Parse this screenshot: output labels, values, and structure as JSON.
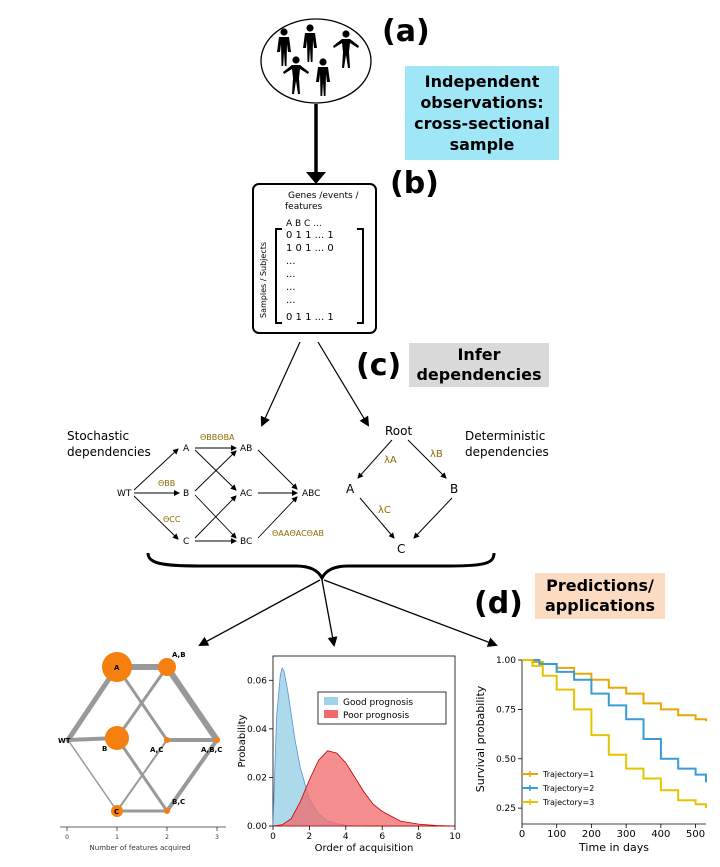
{
  "panels": {
    "a": "(a)",
    "b": "(b)",
    "c": "(c)",
    "d": "(d)"
  },
  "boxes": {
    "independent": [
      "Independent",
      "observations:",
      "cross-sectional",
      "sample"
    ],
    "infer": [
      "Infer",
      "dependencies"
    ],
    "predictions": [
      "Predictions/",
      "applications"
    ]
  },
  "matrix": {
    "header": [
      "Genes /events /",
      "features"
    ],
    "side_label": "Samples / Subjects",
    "rows": [
      "A  B  C     ...",
      "0  1  1     ...   1",
      "1  0  1     ...   0",
      "...",
      "...",
      "...",
      "...",
      "0  1  1     ...   1"
    ]
  },
  "stochastic": {
    "title": [
      "Stochastic",
      "dependencies"
    ],
    "nodes": [
      "WT",
      "A",
      "B",
      "C",
      "AB",
      "AC",
      "BC",
      "ABC"
    ],
    "thetas": {
      "bb_ba": "ΘBBΘBA",
      "bb": "ΘBB",
      "cc": "ΘCC",
      "aa_ac_ab": "ΘAAΘACΘAB"
    }
  },
  "deterministic": {
    "title": [
      "Deterministic",
      "dependencies"
    ],
    "nodes": [
      "Root",
      "A",
      "B",
      "C"
    ],
    "lambdas": [
      "λA",
      "λB",
      "λC"
    ]
  },
  "network": {
    "nodes": [
      "A",
      "A,B",
      "WT",
      "B",
      "A,C",
      "A,B,C",
      "C",
      "B,C"
    ],
    "axis_ticks": [
      "0",
      "1",
      "2",
      "3"
    ],
    "xlabel": "Number of features acquired"
  },
  "chart_data": [
    {
      "type": "area",
      "xlabel": "Order of acquisition",
      "ylabel": "Probability",
      "xlim": [
        0,
        10
      ],
      "ylim": [
        0,
        0.07
      ],
      "x_ticks": [
        "0",
        "2",
        "4",
        "6",
        "8",
        "10"
      ],
      "y_ticks": [
        "0.00",
        "0.02",
        "0.04",
        "0.06"
      ],
      "legend_position": "top-right",
      "series": [
        {
          "name": "Good prognosis",
          "color": "#9fd3e6",
          "x": [
            0,
            0.2,
            0.4,
            0.5,
            0.6,
            0.8,
            1.0,
            1.2,
            1.5,
            2.0,
            2.5,
            3.0,
            3.5,
            4.0,
            5.0
          ],
          "y": [
            0,
            0.045,
            0.062,
            0.065,
            0.064,
            0.056,
            0.046,
            0.036,
            0.024,
            0.011,
            0.005,
            0.002,
            0.001,
            0.0003,
            0
          ]
        },
        {
          "name": "Poor prognosis",
          "color": "#f26a6a",
          "x": [
            0,
            0.5,
            1.0,
            1.5,
            2.0,
            2.5,
            3.0,
            3.5,
            4.0,
            4.5,
            5.0,
            5.5,
            6.0,
            7.0,
            8.0,
            9.0,
            10.0
          ],
          "y": [
            0,
            0.0005,
            0.003,
            0.01,
            0.019,
            0.027,
            0.031,
            0.03,
            0.026,
            0.02,
            0.014,
            0.009,
            0.006,
            0.002,
            0.0008,
            0.0002,
            0
          ]
        }
      ]
    },
    {
      "type": "line",
      "xlabel": "Time in days",
      "ylabel": "Survival probability",
      "xlim": [
        0,
        530
      ],
      "ylim": [
        0.2,
        1.0
      ],
      "x_ticks": [
        "0",
        "100",
        "200",
        "300",
        "400",
        "500"
      ],
      "y_ticks": [
        "0.25",
        "0.50",
        "0.75",
        "1.00"
      ],
      "legend_position": "bottom-left",
      "series": [
        {
          "name": "Trajectory=1",
          "color": "#e8a800",
          "x": [
            0,
            30,
            60,
            100,
            150,
            200,
            250,
            300,
            350,
            400,
            450,
            500,
            530
          ],
          "y": [
            1.0,
            0.99,
            0.98,
            0.96,
            0.93,
            0.9,
            0.86,
            0.83,
            0.78,
            0.75,
            0.72,
            0.7,
            0.69
          ]
        },
        {
          "name": "Trajectory=2",
          "color": "#3a9bd9",
          "x": [
            0,
            50,
            100,
            150,
            200,
            250,
            300,
            350,
            400,
            450,
            500,
            530
          ],
          "y": [
            1.0,
            0.98,
            0.94,
            0.9,
            0.83,
            0.77,
            0.7,
            0.6,
            0.5,
            0.45,
            0.42,
            0.38
          ]
        },
        {
          "name": "Trajectory=3",
          "color": "#e8c400",
          "x": [
            0,
            30,
            60,
            100,
            150,
            200,
            250,
            300,
            350,
            400,
            450,
            500,
            530
          ],
          "y": [
            1.0,
            0.97,
            0.92,
            0.85,
            0.75,
            0.62,
            0.52,
            0.45,
            0.4,
            0.34,
            0.29,
            0.27,
            0.25
          ]
        }
      ]
    }
  ]
}
